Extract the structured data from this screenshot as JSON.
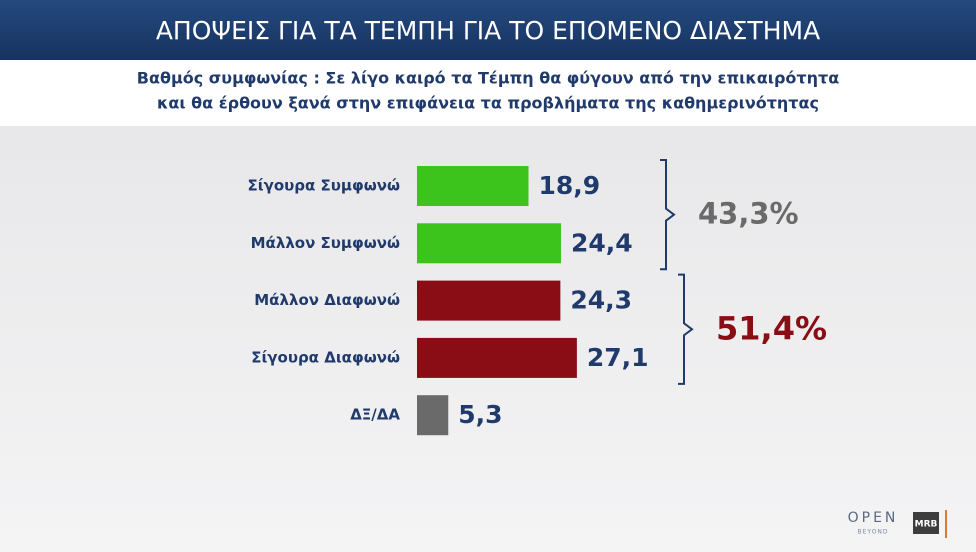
{
  "chart_data": {
    "type": "bar",
    "orientation": "horizontal",
    "title": "ΑΠΟΨΕΙΣ ΓΙΑ ΤΑ ΤΕΜΠΗ ΓΙΑ ΤΟ ΕΠΟΜΕΝΟ ΔΙΑΣΤΗΜΑ",
    "subtitle": [
      "Βαθμός συμφωνίας : Σε λίγο καιρό τα Τέμπη θα φύγουν από την επικαιρότητα",
      "και θα έρθουν ξανά στην επιφάνεια τα προβλήματα της καθημερινότητας"
    ],
    "categories": [
      "Σίγουρα Συμφωνώ",
      "Μάλλον Συμφωνώ",
      "Μάλλον Διαφωνώ",
      "Σίγουρα Διαφωνώ",
      "ΔΞ/ΔΑ"
    ],
    "values": [
      18.9,
      24.4,
      24.3,
      27.1,
      5.3
    ],
    "value_labels": [
      "18,9",
      "24,4",
      "24,3",
      "27,1",
      "5,3"
    ],
    "colors": [
      "#3cc31c",
      "#3cc31c",
      "#8a0d15",
      "#8a0d15",
      "#6a6a6a"
    ],
    "groups": [
      {
        "value": 43.3,
        "label": "43,3%",
        "color": "#6a6a6a"
      },
      {
        "value": 51.4,
        "label": "51,4%",
        "color": "#8a0d15"
      }
    ]
  },
  "logos": {
    "open": "OPEN",
    "open_sub": "BEYOND",
    "mrb": "MRB"
  }
}
